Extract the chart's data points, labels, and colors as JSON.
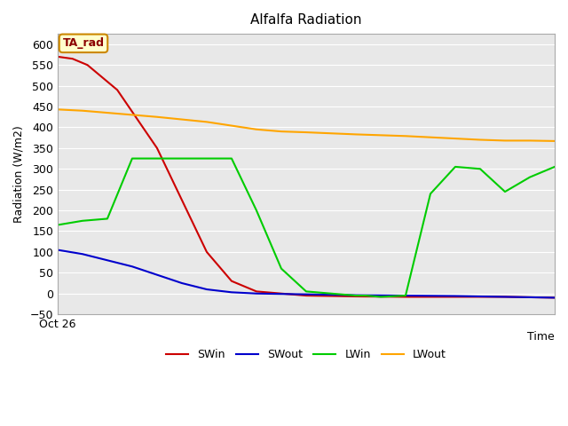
{
  "title": "Alfalfa Radiation",
  "xlabel": "Time",
  "ylabel": "Radiation (W/m2)",
  "annotation": "TA_rad",
  "xlim": [
    0,
    10
  ],
  "ylim": [
    -50,
    625
  ],
  "yticks": [
    -50,
    0,
    50,
    100,
    150,
    200,
    250,
    300,
    350,
    400,
    450,
    500,
    550,
    600
  ],
  "xticklabels": [
    "Oct 26"
  ],
  "plot_bg_color": "#e8e8e8",
  "SWin": {
    "x": [
      0,
      0.3,
      0.6,
      1.2,
      2.0,
      3.0,
      3.5,
      4.0,
      5.0,
      6.0,
      7.0,
      8.0,
      9.0,
      10.0
    ],
    "y": [
      570,
      565,
      550,
      490,
      350,
      100,
      30,
      5,
      -5,
      -7,
      -8,
      -8,
      -8,
      -10
    ],
    "color": "#cc0000",
    "label": "SWin"
  },
  "SWout": {
    "x": [
      0,
      0.5,
      1.0,
      1.5,
      2.0,
      2.5,
      3.0,
      3.5,
      4.0,
      5.0,
      6.0,
      7.0,
      8.0,
      9.0,
      10.0
    ],
    "y": [
      105,
      95,
      80,
      65,
      45,
      25,
      10,
      3,
      0,
      -2,
      -4,
      -5,
      -6,
      -8,
      -10
    ],
    "color": "#0000cc",
    "label": "SWout"
  },
  "LWin": {
    "x": [
      0,
      0.5,
      1.0,
      1.5,
      2.0,
      3.0,
      3.5,
      4.0,
      4.5,
      5.0,
      5.5,
      6.0,
      6.2,
      6.5,
      7.0,
      7.5,
      8.0,
      8.5,
      9.0,
      9.5,
      10.0
    ],
    "y": [
      165,
      175,
      180,
      325,
      325,
      325,
      325,
      200,
      60,
      5,
      0,
      -5,
      -5,
      -8,
      -5,
      240,
      305,
      300,
      245,
      280,
      305
    ],
    "color": "#00cc00",
    "label": "LWin"
  },
  "LWout": {
    "x": [
      0,
      0.5,
      1.0,
      2.0,
      3.0,
      4.0,
      4.5,
      5.0,
      6.0,
      7.0,
      7.5,
      8.0,
      8.5,
      9.0,
      9.5,
      10.0
    ],
    "y": [
      443,
      440,
      435,
      425,
      413,
      395,
      390,
      388,
      383,
      379,
      376,
      373,
      370,
      368,
      368,
      367
    ],
    "color": "#ffa500",
    "label": "LWout"
  }
}
